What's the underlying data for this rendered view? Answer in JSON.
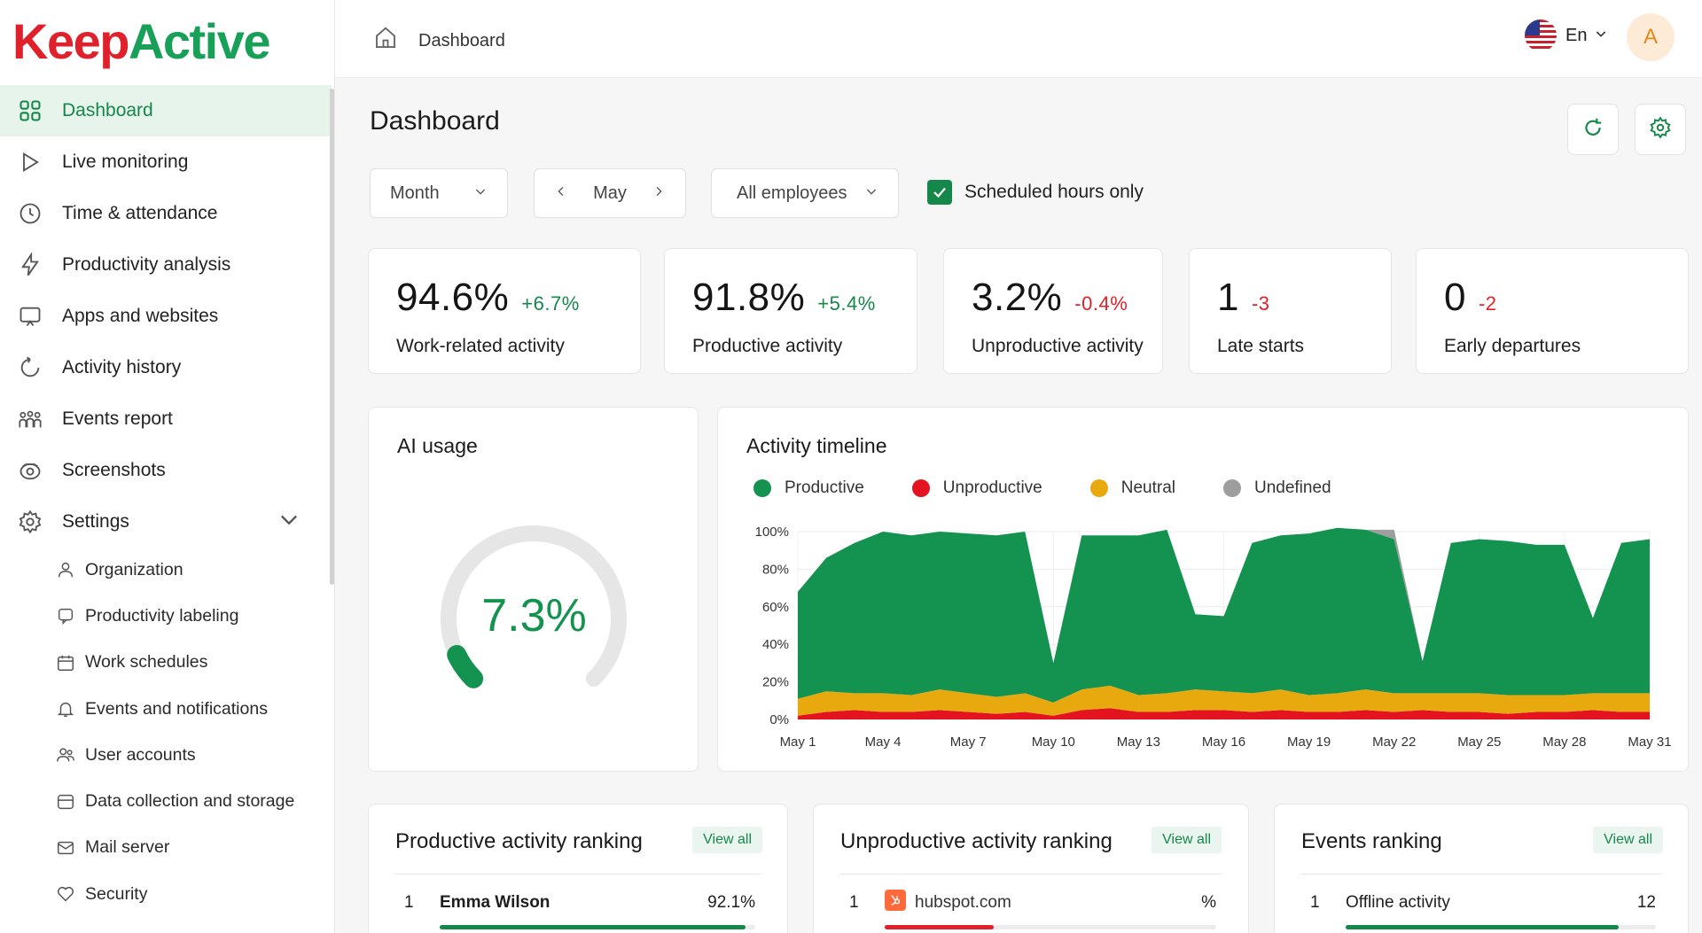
{
  "app": {
    "logo_part1": "Keep",
    "logo_part2": "Active"
  },
  "sidebar": {
    "items": [
      {
        "label": "Dashboard",
        "icon": "grid-icon",
        "active": true
      },
      {
        "label": "Live monitoring",
        "icon": "play-icon"
      },
      {
        "label": "Time & attendance",
        "icon": "clock-icon"
      },
      {
        "label": "Productivity analysis",
        "icon": "bolt-icon"
      },
      {
        "label": "Apps and websites",
        "icon": "monitor-icon"
      },
      {
        "label": "Activity history",
        "icon": "history-icon"
      },
      {
        "label": "Events report",
        "icon": "people-icon"
      },
      {
        "label": "Screenshots",
        "icon": "camera-icon"
      },
      {
        "label": "Settings",
        "icon": "gear-icon"
      }
    ],
    "settings_items": [
      {
        "label": "Organization",
        "icon": "user-icon"
      },
      {
        "label": "Productivity labeling",
        "icon": "tag-icon"
      },
      {
        "label": "Work schedules",
        "icon": "calendar-icon"
      },
      {
        "label": "Events and notifications",
        "icon": "bell-icon"
      },
      {
        "label": "User accounts",
        "icon": "users-icon"
      },
      {
        "label": "Data collection and storage",
        "icon": "database-icon"
      },
      {
        "label": "Mail server",
        "icon": "mail-icon"
      },
      {
        "label": "Security",
        "icon": "heart-shield-icon"
      }
    ]
  },
  "topbar": {
    "breadcrumb": "Dashboard",
    "language": "En",
    "avatar_initial": "A"
  },
  "main": {
    "title": "Dashboard",
    "filters": {
      "period": "Month",
      "month": "May",
      "employees": "All employees",
      "scheduled_label": "Scheduled hours only",
      "scheduled_checked": true
    },
    "stats": [
      {
        "value": "94.6%",
        "delta": "+6.7%",
        "trend": "up",
        "label": "Work-related activity"
      },
      {
        "value": "91.8%",
        "delta": "+5.4%",
        "trend": "up",
        "label": "Productive activity"
      },
      {
        "value": "3.2%",
        "delta": "-0.4%",
        "trend": "down",
        "label": "Unproductive activity"
      },
      {
        "value": "1",
        "delta": "-3",
        "trend": "down",
        "label": "Late starts"
      },
      {
        "value": "0",
        "delta": "-2",
        "trend": "down",
        "label": "Early departures"
      }
    ],
    "ai_usage": {
      "title": "AI usage",
      "value": "7.3%",
      "fraction": 0.073
    },
    "timeline": {
      "title": "Activity timeline",
      "legend": [
        {
          "name": "Productive",
          "color": "#14924f"
        },
        {
          "name": "Unproductive",
          "color": "#e3141f"
        },
        {
          "name": "Neutral",
          "color": "#e8a90f"
        },
        {
          "name": "Undefined",
          "color": "#9e9e9e"
        }
      ]
    },
    "rankings": [
      {
        "title": "Productive activity ranking",
        "view_all": "View all",
        "row": {
          "rank": "1",
          "name": "Emma Wilson",
          "value": "92.1%",
          "fill": 0.97,
          "color": "#16874a"
        }
      },
      {
        "title": "Unproductive activity ranking",
        "view_all": "View all",
        "row": {
          "rank": "1",
          "name": "hubspot.com",
          "value": "%",
          "fill": 0.33,
          "color": "#e0202a"
        }
      },
      {
        "title": "Events ranking",
        "view_all": "View all",
        "row": {
          "rank": "1",
          "name": "Offline activity",
          "value": "12",
          "fill": 0.88,
          "color": "#16874a"
        }
      }
    ]
  },
  "chart_data": {
    "type": "area",
    "title": "Activity timeline",
    "xlabel": "",
    "ylabel": "",
    "ylim": [
      0,
      100
    ],
    "x_tick_labels": [
      "May 1",
      "May 4",
      "May 7",
      "May 10",
      "May 13",
      "May 16",
      "May 19",
      "May 22",
      "May 25",
      "May 28",
      "May 31"
    ],
    "y_tick_labels": [
      "0%",
      "20%",
      "40%",
      "60%",
      "80%",
      "100%"
    ],
    "x": [
      "May 1",
      "May 2",
      "May 3",
      "May 4",
      "May 5",
      "May 6",
      "May 7",
      "May 8",
      "May 9",
      "May 10",
      "May 11",
      "May 12",
      "May 13",
      "May 14",
      "May 15",
      "May 16",
      "May 17",
      "May 18",
      "May 19",
      "May 20",
      "May 21",
      "May 22",
      "May 23",
      "May 24",
      "May 25",
      "May 26",
      "May 27",
      "May 28",
      "May 29",
      "May 30",
      "May 31"
    ],
    "series": [
      {
        "name": "Unproductive",
        "values": [
          2,
          4,
          5,
          4,
          4,
          5,
          4,
          3,
          4,
          2,
          5,
          6,
          4,
          4,
          5,
          5,
          4,
          5,
          4,
          4,
          5,
          4,
          5,
          4,
          4,
          3,
          4,
          4,
          5,
          4,
          4
        ]
      },
      {
        "name": "Neutral",
        "values": [
          9,
          11,
          9,
          10,
          9,
          11,
          10,
          9,
          10,
          7,
          11,
          12,
          9,
          10,
          11,
          10,
          10,
          11,
          9,
          10,
          11,
          10,
          9,
          10,
          10,
          10,
          9,
          9,
          9,
          10,
          10
        ]
      },
      {
        "name": "Productive",
        "values": [
          57,
          71,
          80,
          86,
          85,
          84,
          85,
          86,
          86,
          21,
          82,
          80,
          85,
          87,
          40,
          40,
          80,
          82,
          86,
          88,
          85,
          82,
          17,
          80,
          82,
          82,
          80,
          80,
          40,
          80,
          82
        ]
      },
      {
        "name": "Undefined",
        "values": [
          0,
          0,
          0,
          0,
          0,
          0,
          0,
          0,
          0,
          0,
          0,
          0,
          0,
          0,
          0,
          0,
          0,
          0,
          0,
          0,
          0,
          5,
          0,
          0,
          0,
          0,
          0,
          0,
          0,
          0,
          0
        ]
      }
    ]
  }
}
